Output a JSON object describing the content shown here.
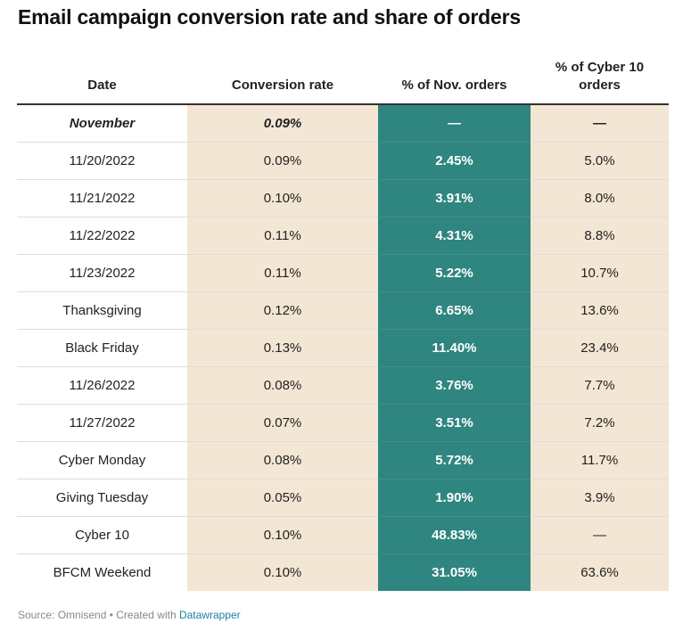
{
  "title": "Email campaign conversion rate and share of orders",
  "headers": [
    "Date",
    "Conversion rate",
    "% of Nov. orders",
    "% of Cyber 10 orders"
  ],
  "rows": [
    [
      "November",
      "0.09%",
      "—",
      "—"
    ],
    [
      "11/20/2022",
      "0.09%",
      "2.45%",
      "5.0%"
    ],
    [
      "11/21/2022",
      "0.10%",
      "3.91%",
      "8.0%"
    ],
    [
      "11/22/2022",
      "0.11%",
      "4.31%",
      "8.8%"
    ],
    [
      "11/23/2022",
      "0.11%",
      "5.22%",
      "10.7%"
    ],
    [
      "Thanksgiving",
      "0.12%",
      "6.65%",
      "13.6%"
    ],
    [
      "Black Friday",
      "0.13%",
      "11.40%",
      "23.4%"
    ],
    [
      "11/26/2022",
      "0.08%",
      "3.76%",
      "7.7%"
    ],
    [
      "11/27/2022",
      "0.07%",
      "3.51%",
      "7.2%"
    ],
    [
      "Cyber Monday",
      "0.08%",
      "5.72%",
      "11.7%"
    ],
    [
      "Giving Tuesday",
      "0.05%",
      "1.90%",
      "3.9%"
    ],
    [
      "Cyber 10",
      "0.10%",
      "48.83%",
      "—"
    ],
    [
      "BFCM Weekend",
      "0.10%",
      "31.05%",
      "63.6%"
    ]
  ],
  "footer": {
    "source": "Source: Omnisend • Created with ",
    "link": "Datawrapper"
  },
  "colors": {
    "beige": "#f3e6d4",
    "teal": "#2f8580"
  },
  "chart_data": {
    "type": "table",
    "title": "Email campaign conversion rate and share of orders",
    "columns": [
      "Date",
      "Conversion rate",
      "% of Nov. orders",
      "% of Cyber 10 orders"
    ],
    "rows": [
      [
        "November",
        "0.09%",
        "—",
        "—"
      ],
      [
        "11/20/2022",
        "0.09%",
        "2.45%",
        "5.0%"
      ],
      [
        "11/21/2022",
        "0.10%",
        "3.91%",
        "8.0%"
      ],
      [
        "11/22/2022",
        "0.11%",
        "4.31%",
        "8.8%"
      ],
      [
        "11/23/2022",
        "0.11%",
        "5.22%",
        "10.7%"
      ],
      [
        "Thanksgiving",
        "0.12%",
        "6.65%",
        "13.6%"
      ],
      [
        "Black Friday",
        "0.13%",
        "11.40%",
        "23.4%"
      ],
      [
        "11/26/2022",
        "0.08%",
        "3.76%",
        "7.7%"
      ],
      [
        "11/27/2022",
        "0.07%",
        "3.51%",
        "7.2%"
      ],
      [
        "Cyber Monday",
        "0.08%",
        "5.72%",
        "11.7%"
      ],
      [
        "Giving Tuesday",
        "0.05%",
        "1.90%",
        "3.9%"
      ],
      [
        "Cyber 10",
        "0.10%",
        "48.83%",
        "—"
      ],
      [
        "BFCM Weekend",
        "0.10%",
        "31.05%",
        "63.6%"
      ]
    ]
  }
}
